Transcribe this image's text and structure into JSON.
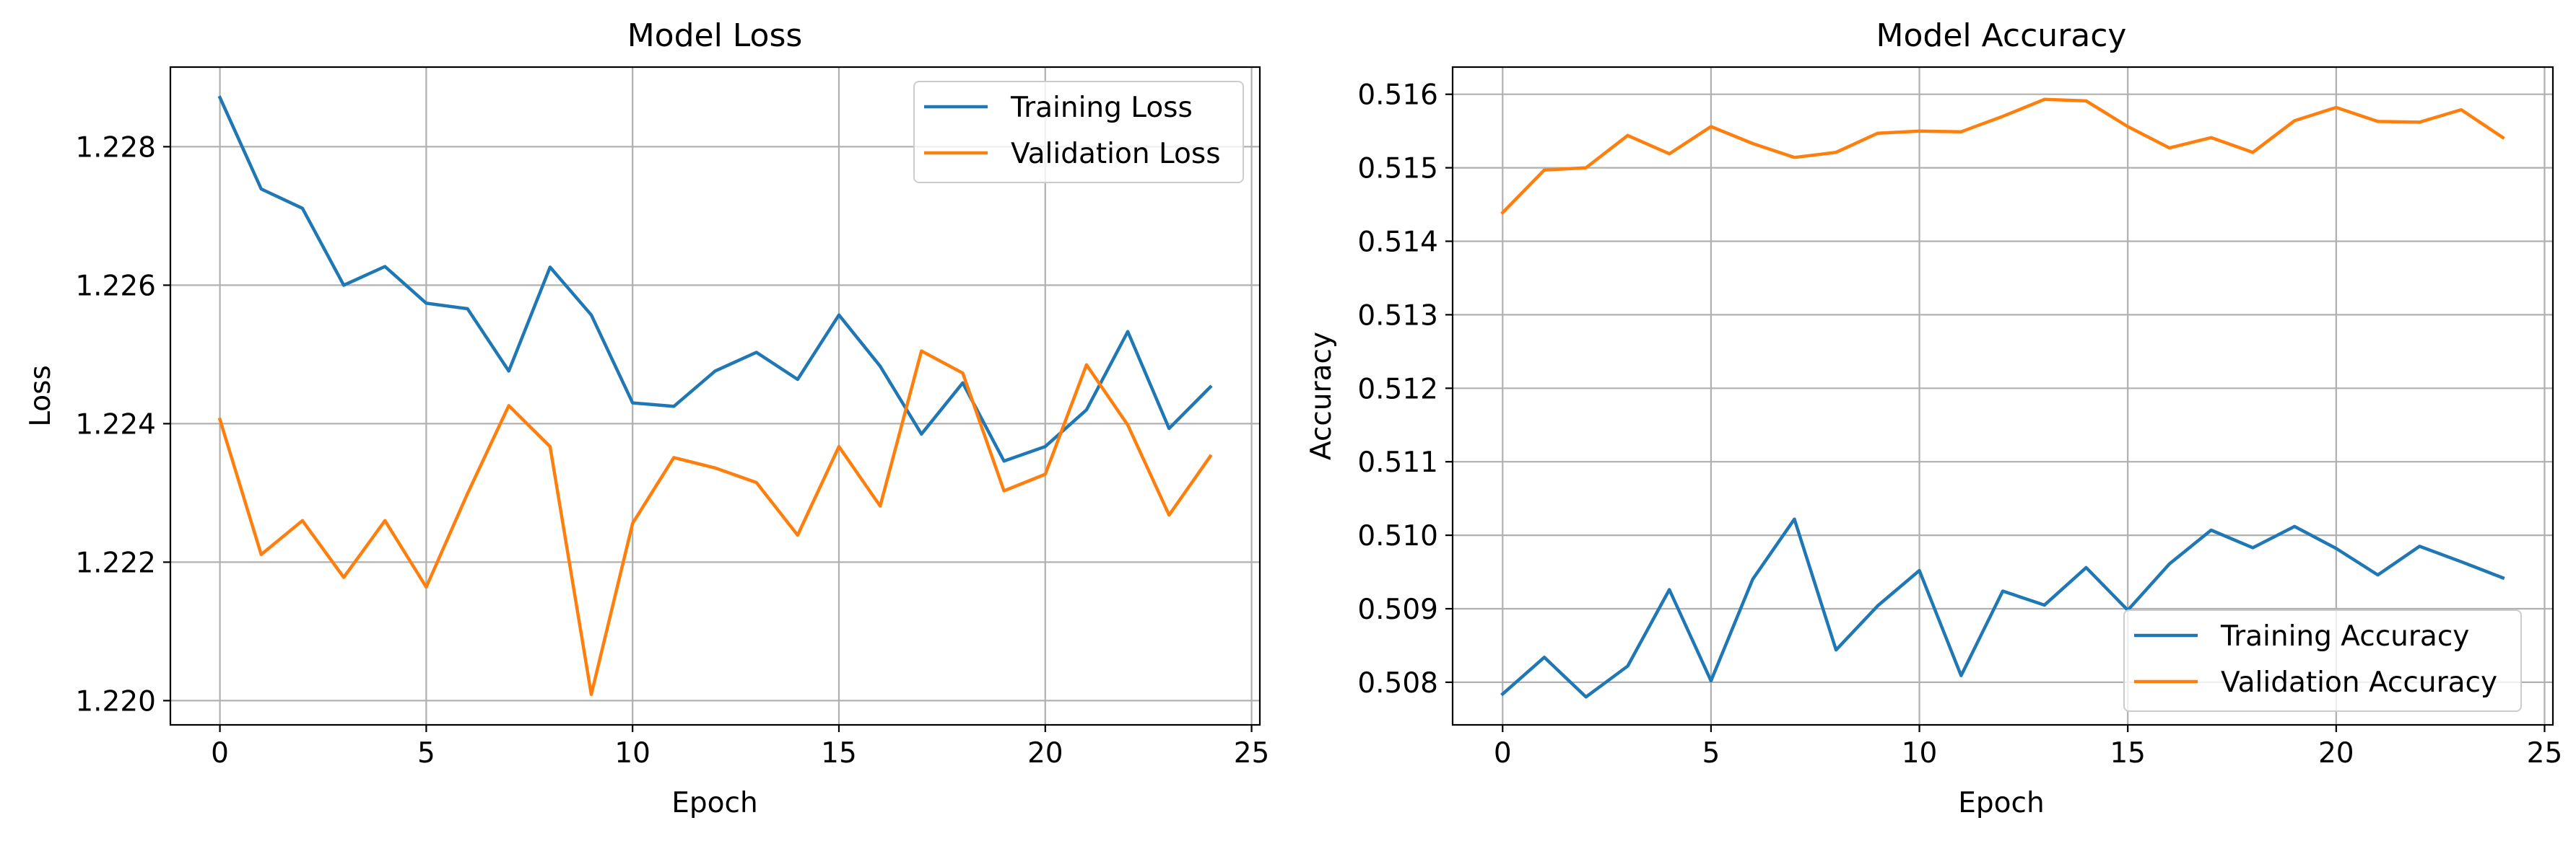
{
  "chart_data": [
    {
      "type": "line",
      "title": "Model Loss",
      "xlabel": "Epoch",
      "ylabel": "Loss",
      "xlim": [
        -1.2,
        25.2
      ],
      "ylim": [
        1.21965,
        1.22915
      ],
      "xticks": [
        0,
        5,
        10,
        15,
        20,
        25
      ],
      "xtick_labels": [
        "0",
        "5",
        "10",
        "15",
        "20",
        "25"
      ],
      "yticks": [
        1.22,
        1.222,
        1.224,
        1.226,
        1.228
      ],
      "ytick_labels": [
        "1.220",
        "1.222",
        "1.224",
        "1.226",
        "1.228"
      ],
      "grid": true,
      "legend_position": "upper right",
      "x": [
        0,
        1,
        2,
        3,
        4,
        5,
        6,
        7,
        8,
        9,
        10,
        11,
        12,
        13,
        14,
        15,
        16,
        17,
        18,
        19,
        20,
        21,
        22,
        23,
        24
      ],
      "series": [
        {
          "name": "Training Loss",
          "color": "#1f77b4",
          "values": [
            1.22871,
            1.22739,
            1.22711,
            1.226,
            1.22627,
            1.22574,
            1.22566,
            1.22476,
            1.22626,
            1.22557,
            1.2243,
            1.22425,
            1.22476,
            1.22503,
            1.22464,
            1.22557,
            1.22483,
            1.22385,
            1.22459,
            1.22346,
            1.22367,
            1.2242,
            1.22533,
            1.22393,
            1.22453
          ]
        },
        {
          "name": "Validation Loss",
          "color": "#ff7f0e",
          "values": [
            1.22406,
            1.22211,
            1.2226,
            1.22178,
            1.2226,
            1.22164,
            1.22299,
            1.22426,
            1.22367,
            1.22009,
            1.22256,
            1.22351,
            1.22336,
            1.22315,
            1.22239,
            1.22367,
            1.22281,
            1.22505,
            1.22473,
            1.22303,
            1.22327,
            1.22485,
            1.22398,
            1.22268,
            1.22353
          ]
        }
      ]
    },
    {
      "type": "line",
      "title": "Model Accuracy",
      "xlabel": "Epoch",
      "ylabel": "Accuracy",
      "xlim": [
        -1.2,
        25.2
      ],
      "ylim": [
        0.50742,
        0.51637
      ],
      "xticks": [
        0,
        5,
        10,
        15,
        20,
        25
      ],
      "xtick_labels": [
        "0",
        "5",
        "10",
        "15",
        "20",
        "25"
      ],
      "yticks": [
        0.508,
        0.509,
        0.51,
        0.511,
        0.512,
        0.513,
        0.514,
        0.515,
        0.516
      ],
      "ytick_labels": [
        "0.508",
        "0.509",
        "0.510",
        "0.511",
        "0.512",
        "0.513",
        "0.514",
        "0.515",
        "0.516"
      ],
      "grid": true,
      "legend_position": "lower right",
      "x": [
        0,
        1,
        2,
        3,
        4,
        5,
        6,
        7,
        8,
        9,
        10,
        11,
        12,
        13,
        14,
        15,
        16,
        17,
        18,
        19,
        20,
        21,
        22,
        23,
        24
      ],
      "series": [
        {
          "name": "Training Accuracy",
          "color": "#1f77b4",
          "values": [
            0.50784,
            0.50834,
            0.5078,
            0.50822,
            0.50926,
            0.50802,
            0.5094,
            0.51022,
            0.50844,
            0.50904,
            0.50952,
            0.50809,
            0.50924,
            0.50905,
            0.50956,
            0.50898,
            0.50961,
            0.51007,
            0.50983,
            0.51012,
            0.50982,
            0.50946,
            0.50985,
            0.50964,
            0.50942
          ]
        },
        {
          "name": "Validation Accuracy",
          "color": "#ff7f0e",
          "values": [
            0.51439,
            0.51497,
            0.515,
            0.51544,
            0.51519,
            0.51556,
            0.51533,
            0.51514,
            0.51521,
            0.51547,
            0.5155,
            0.51549,
            0.5157,
            0.51593,
            0.51591,
            0.51556,
            0.51527,
            0.51541,
            0.51521,
            0.51564,
            0.51582,
            0.51563,
            0.51562,
            0.51579,
            0.51541
          ]
        }
      ]
    }
  ]
}
